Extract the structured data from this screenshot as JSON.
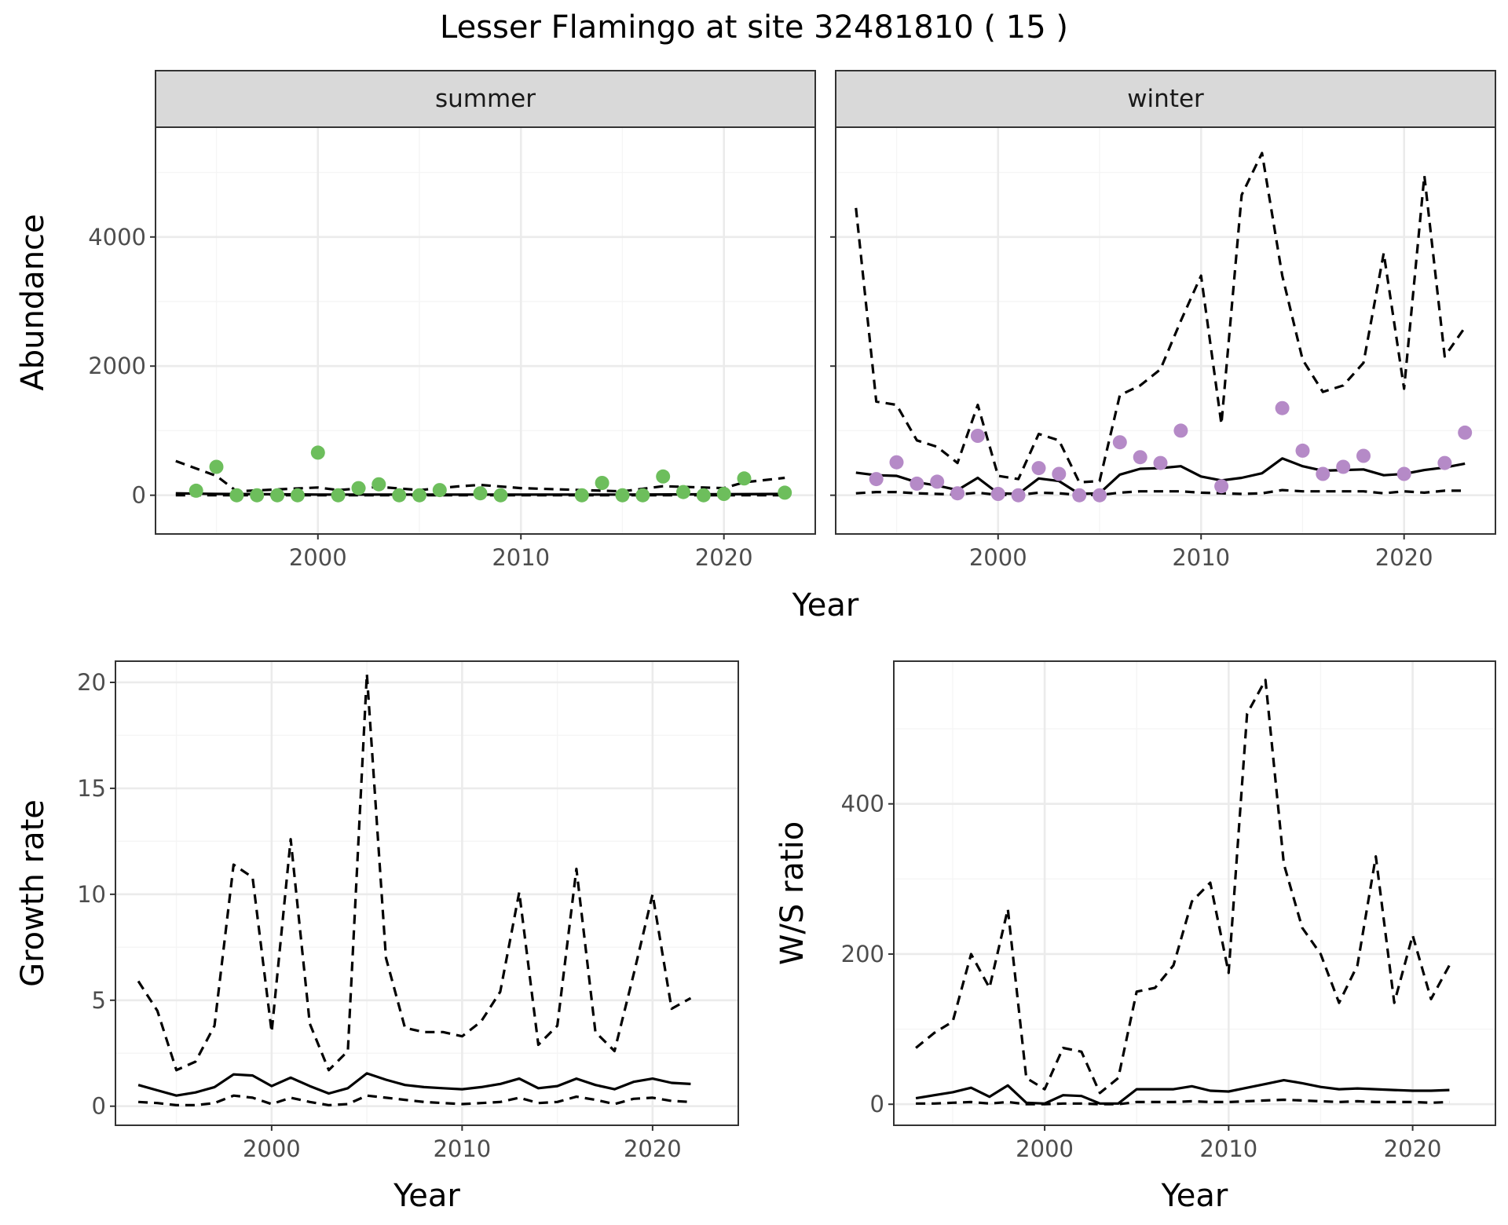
{
  "title": "Lesser Flamingo at site 32481810 ( 15 )",
  "colors": {
    "summer_points": "#6dbe5c",
    "winter_points": "#b58ac7",
    "line": "#000000",
    "strip_fill": "#d9d9d9",
    "grid_major": "#ebebeb",
    "grid_minor": "#f5f5f5",
    "tick_text": "#4d4d4d"
  },
  "chart_data": [
    {
      "type": "scatter",
      "title": "Abundance",
      "xlabel": "Year",
      "ylabel": "Abundance",
      "facets": [
        "summer",
        "winter"
      ],
      "xlim": [
        1992,
        2024.5
      ],
      "ylim": [
        -600,
        5700
      ],
      "xticks": [
        2000,
        2010,
        2020
      ],
      "yticks": [
        0,
        2000,
        4000
      ],
      "grid": true,
      "panels": [
        {
          "facet": "summer",
          "points": {
            "x": [
              1994,
              1995,
              1996,
              1997,
              1998,
              1999,
              2000,
              2001,
              2002,
              2003,
              2004,
              2005,
              2006,
              2008,
              2009,
              2013,
              2014,
              2015,
              2016,
              2017,
              2018,
              2019,
              2020,
              2021,
              2023
            ],
            "y": [
              70,
              440,
              0,
              0,
              0,
              0,
              660,
              0,
              110,
              170,
              0,
              0,
              80,
              30,
              0,
              0,
              190,
              0,
              0,
              290,
              50,
              0,
              20,
              260,
              40
            ]
          },
          "series": [
            {
              "name": "estimate",
              "style": "solid",
              "x": [
                1993,
                1995,
                2000,
                2005,
                2010,
                2015,
                2020,
                2023
              ],
              "y": [
                30,
                20,
                10,
                10,
                10,
                10,
                15,
                20
              ]
            },
            {
              "name": "upper",
              "style": "dashed",
              "x": [
                1993,
                1995,
                1996,
                2000,
                2001,
                2003,
                2005,
                2007,
                2008,
                2010,
                2013,
                2015,
                2017,
                2020,
                2021,
                2023
              ],
              "y": [
                530,
                300,
                60,
                120,
                80,
                130,
                80,
                140,
                160,
                110,
                80,
                60,
                140,
                110,
                200,
                270
              ]
            },
            {
              "name": "lower",
              "style": "dashed",
              "x": [
                1993,
                2023
              ],
              "y": [
                0,
                0
              ]
            }
          ]
        },
        {
          "facet": "winter",
          "points": {
            "x": [
              1994,
              1995,
              1996,
              1997,
              1998,
              1999,
              2000,
              2001,
              2002,
              2003,
              2004,
              2005,
              2006,
              2007,
              2008,
              2009,
              2011,
              2014,
              2015,
              2016,
              2017,
              2018,
              2020,
              2022,
              2023
            ],
            "y": [
              250,
              510,
              180,
              210,
              30,
              920,
              20,
              0,
              420,
              330,
              0,
              0,
              820,
              590,
              500,
              1000,
              140,
              1350,
              690,
              330,
              440,
              610,
              330,
              500,
              970
            ]
          },
          "series": [
            {
              "name": "estimate",
              "style": "solid",
              "x": [
                1993,
                1994,
                1995,
                1996,
                1997,
                1998,
                1999,
                2000,
                2001,
                2002,
                2003,
                2004,
                2005,
                2006,
                2007,
                2008,
                2009,
                2010,
                2011,
                2012,
                2013,
                2014,
                2015,
                2016,
                2017,
                2018,
                2019,
                2020,
                2021,
                2022,
                2023
              ],
              "y": [
                350,
                310,
                300,
                200,
                150,
                80,
                270,
                30,
                20,
                260,
                220,
                20,
                30,
                320,
                410,
                420,
                450,
                290,
                230,
                270,
                340,
                570,
                450,
                380,
                390,
                400,
                310,
                330,
                390,
                430,
                490
              ]
            },
            {
              "name": "upper",
              "style": "dashed",
              "x": [
                1993,
                1994,
                1995,
                1996,
                1997,
                1998,
                1999,
                2000,
                2001,
                2002,
                2003,
                2004,
                2005,
                2006,
                2007,
                2008,
                2009,
                2010,
                2011,
                2012,
                2013,
                2014,
                2015,
                2016,
                2017,
                2018,
                2019,
                2020,
                2021,
                2022,
                2023
              ],
              "y": [
                4450,
                1450,
                1400,
                850,
                750,
                500,
                1400,
                300,
                250,
                950,
                850,
                200,
                220,
                1550,
                1700,
                1950,
                2700,
                3400,
                1100,
                4650,
                5300,
                3400,
                2100,
                1600,
                1700,
                2050,
                3750,
                1650,
                4950,
                2150,
                2600
              ]
            },
            {
              "name": "lower",
              "style": "dashed",
              "x": [
                1993,
                1994,
                1995,
                1996,
                1997,
                1998,
                1999,
                2000,
                2001,
                2002,
                2003,
                2004,
                2005,
                2006,
                2007,
                2008,
                2009,
                2010,
                2011,
                2012,
                2013,
                2014,
                2015,
                2016,
                2017,
                2018,
                2019,
                2020,
                2021,
                2022,
                2023
              ],
              "y": [
                30,
                50,
                50,
                30,
                20,
                10,
                40,
                5,
                5,
                40,
                30,
                5,
                5,
                40,
                60,
                60,
                60,
                40,
                30,
                20,
                30,
                80,
                60,
                60,
                60,
                60,
                30,
                60,
                40,
                70,
                70
              ]
            }
          ]
        }
      ]
    },
    {
      "type": "line",
      "title": "Growth rate",
      "xlabel": "Year",
      "ylabel": "Growth rate",
      "xlim": [
        1991.8,
        2024.5
      ],
      "ylim": [
        -0.9,
        21
      ],
      "xticks": [
        2000,
        2010,
        2020
      ],
      "yticks": [
        0,
        5,
        10,
        15,
        20
      ],
      "grid": true,
      "series": [
        {
          "name": "estimate",
          "style": "solid",
          "x": [
            1993,
            1994,
            1995,
            1996,
            1997,
            1998,
            1999,
            2000,
            2001,
            2002,
            2003,
            2004,
            2005,
            2006,
            2007,
            2008,
            2009,
            2010,
            2011,
            2012,
            2013,
            2014,
            2015,
            2016,
            2017,
            2018,
            2019,
            2020,
            2021,
            2022
          ],
          "y": [
            1.0,
            0.75,
            0.5,
            0.65,
            0.9,
            1.5,
            1.45,
            0.95,
            1.35,
            0.95,
            0.6,
            0.85,
            1.55,
            1.25,
            1.0,
            0.9,
            0.85,
            0.8,
            0.9,
            1.05,
            1.3,
            0.85,
            0.95,
            1.3,
            1.0,
            0.8,
            1.15,
            1.3,
            1.1,
            1.05
          ]
        },
        {
          "name": "upper",
          "style": "dashed",
          "x": [
            1993,
            1994,
            1995,
            1996,
            1997,
            1998,
            1999,
            2000,
            2001,
            2002,
            2003,
            2004,
            2005,
            2006,
            2007,
            2008,
            2009,
            2010,
            2011,
            2012,
            2013,
            2014,
            2015,
            2016,
            2017,
            2018,
            2019,
            2020,
            2021,
            2022
          ],
          "y": [
            5.9,
            4.5,
            1.7,
            2.1,
            3.8,
            11.4,
            10.8,
            3.5,
            12.6,
            3.9,
            1.7,
            2.6,
            20.4,
            7.0,
            3.7,
            3.5,
            3.5,
            3.3,
            4.0,
            5.4,
            10.1,
            2.9,
            3.8,
            11.2,
            3.5,
            2.6,
            6.2,
            10.0,
            4.6,
            5.1
          ]
        },
        {
          "name": "lower",
          "style": "dashed",
          "x": [
            1993,
            1994,
            1995,
            1996,
            1997,
            1998,
            1999,
            2000,
            2001,
            2002,
            2003,
            2004,
            2005,
            2006,
            2007,
            2008,
            2009,
            2010,
            2011,
            2012,
            2013,
            2014,
            2015,
            2016,
            2017,
            2018,
            2019,
            2020,
            2021,
            2022
          ],
          "y": [
            0.2,
            0.15,
            0.05,
            0.05,
            0.15,
            0.5,
            0.4,
            0.1,
            0.4,
            0.2,
            0.05,
            0.1,
            0.5,
            0.4,
            0.3,
            0.2,
            0.15,
            0.1,
            0.15,
            0.2,
            0.4,
            0.15,
            0.2,
            0.45,
            0.3,
            0.1,
            0.35,
            0.4,
            0.25,
            0.2
          ]
        }
      ]
    },
    {
      "type": "line",
      "title": "W/S ratio",
      "xlabel": "Year",
      "ylabel": "W/S ratio",
      "xlim": [
        1991.8,
        2024.5
      ],
      "ylim": [
        -28,
        590
      ],
      "xticks": [
        2000,
        2010,
        2020
      ],
      "yticks": [
        0,
        200,
        400
      ],
      "grid": true,
      "series": [
        {
          "name": "estimate",
          "style": "solid",
          "x": [
            1993,
            1994,
            1995,
            1996,
            1997,
            1998,
            1999,
            2000,
            2001,
            2002,
            2003,
            2004,
            2005,
            2006,
            2007,
            2008,
            2009,
            2010,
            2011,
            2012,
            2013,
            2014,
            2015,
            2016,
            2017,
            2018,
            2019,
            2020,
            2021,
            2022
          ],
          "y": [
            8,
            12,
            16,
            22,
            10,
            25,
            2,
            1,
            12,
            11,
            1,
            1,
            20,
            20,
            20,
            24,
            18,
            17,
            22,
            27,
            32,
            28,
            23,
            20,
            21,
            20,
            19,
            18,
            18,
            19
          ]
        },
        {
          "name": "upper",
          "style": "dashed",
          "x": [
            1993,
            1994,
            1995,
            1996,
            1997,
            1998,
            1999,
            2000,
            2001,
            2002,
            2003,
            2004,
            2005,
            2006,
            2007,
            2008,
            2009,
            2010,
            2011,
            2012,
            2013,
            2014,
            2015,
            2016,
            2017,
            2018,
            2019,
            2020,
            2021,
            2022
          ],
          "y": [
            75,
            95,
            110,
            200,
            155,
            260,
            35,
            20,
            75,
            70,
            15,
            35,
            150,
            155,
            185,
            270,
            295,
            175,
            520,
            565,
            320,
            235,
            200,
            135,
            185,
            330,
            135,
            225,
            140,
            185
          ]
        },
        {
          "name": "lower",
          "style": "dashed",
          "x": [
            1993,
            1994,
            1995,
            1996,
            1997,
            1998,
            1999,
            2000,
            2001,
            2002,
            2003,
            2004,
            2005,
            2006,
            2007,
            2008,
            2009,
            2010,
            2011,
            2012,
            2013,
            2014,
            2015,
            2016,
            2017,
            2018,
            2019,
            2020,
            2021,
            2022
          ],
          "y": [
            1,
            1,
            2,
            3,
            1,
            3,
            0,
            0,
            1,
            1,
            0,
            0,
            3,
            3,
            3,
            4,
            3,
            3,
            4,
            5,
            6,
            5,
            4,
            3,
            4,
            3,
            3,
            3,
            2,
            3
          ]
        }
      ]
    }
  ]
}
